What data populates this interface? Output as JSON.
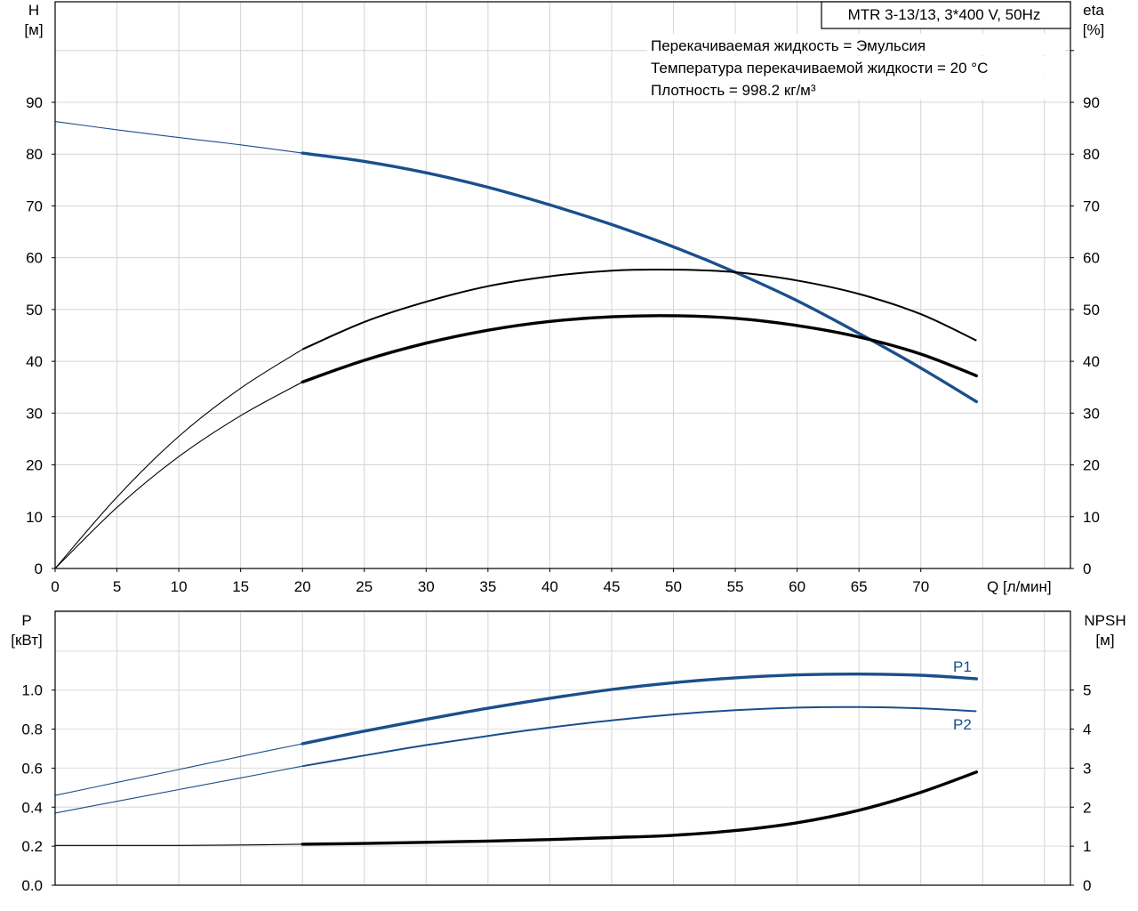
{
  "chart_data": [
    {
      "type": "line",
      "panel": "top",
      "title": "MTR 3-13/13, 3*400 V, 50Hz",
      "notes": [
        "Перекачиваемая жидкость = Эмульсия",
        "Температура перекачиваемой жидкости = 20 °C",
        "Плотность = 998.2 кг/м³"
      ],
      "xlabel": "Q [л/мин]",
      "ylabel_left": [
        "H",
        "[м]"
      ],
      "ylabel_right": [
        "eta",
        "[%]"
      ],
      "xlim": [
        0,
        80
      ],
      "ylim_left": [
        0,
        90
      ],
      "ylim_right": [
        0,
        90
      ],
      "x_ticks": [
        0,
        5,
        10,
        15,
        20,
        25,
        30,
        35,
        40,
        45,
        50,
        55,
        60,
        65,
        70
      ],
      "y_ticks": [
        0,
        10,
        20,
        30,
        40,
        50,
        60,
        70,
        80,
        90
      ],
      "grid": true,
      "series": [
        {
          "key": "H",
          "color": "#1a4f8a",
          "thin": [
            [
              0,
              86.3
            ],
            [
              5,
              84.7
            ],
            [
              10,
              83.2
            ],
            [
              15,
              81.8
            ],
            [
              20,
              80.2
            ]
          ],
          "thick": [
            [
              20,
              80.2
            ],
            [
              25,
              78.6
            ],
            [
              30,
              76.4
            ],
            [
              35,
              73.6
            ],
            [
              40,
              70.2
            ],
            [
              45,
              66.4
            ],
            [
              50,
              62.1
            ],
            [
              55,
              57.2
            ],
            [
              60,
              51.7
            ],
            [
              65,
              45.4
            ],
            [
              70,
              38.7
            ],
            [
              74.5,
              32.2
            ]
          ]
        },
        {
          "key": "eta_upper",
          "color": "#000000",
          "thin": [
            [
              0,
              0
            ],
            [
              5,
              13.8
            ],
            [
              10,
              25.5
            ],
            [
              15,
              34.8
            ],
            [
              20,
              42.3
            ]
          ],
          "thick": [],
          "mid": [
            [
              20,
              42.3
            ],
            [
              25,
              47.6
            ],
            [
              30,
              51.5
            ],
            [
              35,
              54.5
            ],
            [
              40,
              56.4
            ],
            [
              45,
              57.5
            ],
            [
              50,
              57.7
            ],
            [
              55,
              57.2
            ],
            [
              60,
              55.6
            ],
            [
              65,
              53.0
            ],
            [
              70,
              49.1
            ],
            [
              74.5,
              44.0
            ]
          ]
        },
        {
          "key": "eta",
          "color": "#000000",
          "thin": [
            [
              0,
              0
            ],
            [
              5,
              11.8
            ],
            [
              10,
              21.6
            ],
            [
              15,
              29.5
            ],
            [
              20,
              36.0
            ]
          ],
          "thick": [
            [
              20,
              36.0
            ],
            [
              25,
              40.2
            ],
            [
              30,
              43.5
            ],
            [
              35,
              46.0
            ],
            [
              40,
              47.7
            ],
            [
              45,
              48.6
            ],
            [
              50,
              48.8
            ],
            [
              55,
              48.3
            ],
            [
              60,
              46.9
            ],
            [
              65,
              44.7
            ],
            [
              70,
              41.4
            ],
            [
              74.5,
              37.2
            ]
          ]
        }
      ]
    },
    {
      "type": "line",
      "panel": "bottom",
      "ylabel_left": [
        "P",
        "[кВт]"
      ],
      "ylabel_right": [
        "NPSH",
        "[м]"
      ],
      "xlim": [
        0,
        80
      ],
      "ylim_left": [
        0,
        1.2
      ],
      "ylim_right": [
        0,
        6
      ],
      "y_ticks_left": [
        "0.0",
        "0.2",
        "0.4",
        "0.6",
        "0.8",
        "1.0"
      ],
      "y_ticks_right": [
        "0",
        "1",
        "2",
        "3",
        "4",
        "5"
      ],
      "grid": true,
      "series": [
        {
          "name": "P1",
          "color": "#1a4f8a",
          "thin": [
            [
              0,
              0.46
            ],
            [
              5,
              0.527
            ],
            [
              10,
              0.593
            ],
            [
              15,
              0.66
            ],
            [
              20,
              0.725
            ]
          ],
          "thick": [
            [
              20,
              0.725
            ],
            [
              25,
              0.79
            ],
            [
              30,
              0.85
            ],
            [
              35,
              0.907
            ],
            [
              40,
              0.958
            ],
            [
              45,
              1.003
            ],
            [
              50,
              1.038
            ],
            [
              55,
              1.063
            ],
            [
              60,
              1.078
            ],
            [
              65,
              1.082
            ],
            [
              70,
              1.076
            ],
            [
              74.5,
              1.058
            ]
          ]
        },
        {
          "name": "P2",
          "color": "#1a4f8a",
          "thin": [
            [
              0,
              0.37
            ],
            [
              5,
              0.43
            ],
            [
              10,
              0.49
            ],
            [
              15,
              0.55
            ],
            [
              20,
              0.61
            ]
          ],
          "mid": [
            [
              20,
              0.61
            ],
            [
              25,
              0.665
            ],
            [
              30,
              0.718
            ],
            [
              35,
              0.765
            ],
            [
              40,
              0.808
            ],
            [
              45,
              0.845
            ],
            [
              50,
              0.875
            ],
            [
              55,
              0.897
            ],
            [
              60,
              0.91
            ],
            [
              65,
              0.913
            ],
            [
              70,
              0.906
            ],
            [
              74.5,
              0.892
            ]
          ]
        },
        {
          "key": "NPSH",
          "color": "#000000",
          "axis": "right",
          "thin": [
            [
              0,
              1.02
            ],
            [
              5,
              1.02
            ],
            [
              10,
              1.02
            ],
            [
              15,
              1.03
            ],
            [
              20,
              1.05
            ]
          ],
          "thick": [
            [
              20,
              1.05
            ],
            [
              25,
              1.07
            ],
            [
              30,
              1.1
            ],
            [
              35,
              1.13
            ],
            [
              40,
              1.17
            ],
            [
              45,
              1.22
            ],
            [
              50,
              1.28
            ],
            [
              55,
              1.4
            ],
            [
              60,
              1.6
            ],
            [
              65,
              1.92
            ],
            [
              70,
              2.38
            ],
            [
              74.5,
              2.9
            ]
          ]
        }
      ]
    }
  ]
}
